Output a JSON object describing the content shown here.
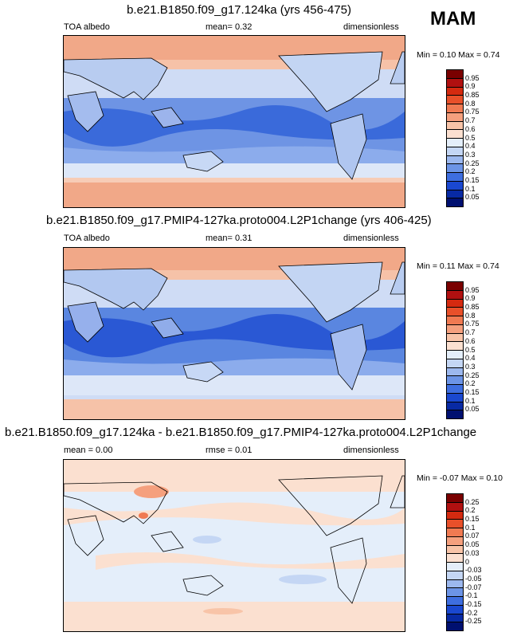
{
  "season": "MAM",
  "panels": [
    {
      "title": "b.e21.B1850.f09_g17.124ka (yrs 456-475)",
      "left": "TOA albedo",
      "center": "mean=   0.32",
      "right": "dimensionless",
      "minmax": "Min =   0.10 Max =   0.74",
      "levels": [
        "0.95",
        "0.9",
        "0.85",
        "0.8",
        "0.75",
        "0.7",
        "0.6",
        "0.5",
        "0.4",
        "0.3",
        "0.25",
        "0.2",
        "0.15",
        "0.1",
        "0.05"
      ],
      "colors": [
        "#7a0000",
        "#b01010",
        "#d42a10",
        "#e8502a",
        "#f07a52",
        "#f5a07e",
        "#f8c4a8",
        "#fbe0d0",
        "#e4eefa",
        "#c4d6f4",
        "#9cb8ee",
        "#6c94e6",
        "#3e6ee0",
        "#1a48d0",
        "#082aa4",
        "#001070"
      ]
    },
    {
      "title": "b.e21.B1850.f09_g17.PMIP4-127ka.proto004.L2P1change (yrs 406-425)",
      "left": "TOA albedo",
      "center": "mean=   0.31",
      "right": "dimensionless",
      "minmax": "Min =   0.11 Max =   0.74",
      "levels": [
        "0.95",
        "0.9",
        "0.85",
        "0.8",
        "0.75",
        "0.7",
        "0.6",
        "0.5",
        "0.4",
        "0.3",
        "0.25",
        "0.2",
        "0.15",
        "0.1",
        "0.05"
      ],
      "colors": [
        "#7a0000",
        "#b01010",
        "#d42a10",
        "#e8502a",
        "#f07a52",
        "#f5a07e",
        "#f8c4a8",
        "#fbe0d0",
        "#e4eefa",
        "#c4d6f4",
        "#9cb8ee",
        "#6c94e6",
        "#3e6ee0",
        "#1a48d0",
        "#082aa4",
        "#001070"
      ]
    },
    {
      "title": "b.e21.B1850.f09_g17.124ka - b.e21.B1850.f09_g17.PMIP4-127ka.proto004.L2P1change",
      "left": "mean =   0.00",
      "center": "rmse =   0.01",
      "right": "dimensionless",
      "minmax": "Min =  -0.07 Max =   0.10",
      "levels": [
        "0.25",
        "0.2",
        "0.15",
        "0.1",
        "0.07",
        "0.05",
        "0.03",
        "0",
        "-0.03",
        "-0.05",
        "-0.07",
        "-0.1",
        "-0.15",
        "-0.2",
        "-0.25"
      ],
      "colors": [
        "#7a0000",
        "#b01010",
        "#d42a10",
        "#e8502a",
        "#f07a52",
        "#f5a07e",
        "#f8c4a8",
        "#fbe0d0",
        "#e4eefa",
        "#c4d6f4",
        "#9cb8ee",
        "#6c94e6",
        "#3e6ee0",
        "#1a48d0",
        "#082aa4",
        "#001070"
      ]
    }
  ]
}
